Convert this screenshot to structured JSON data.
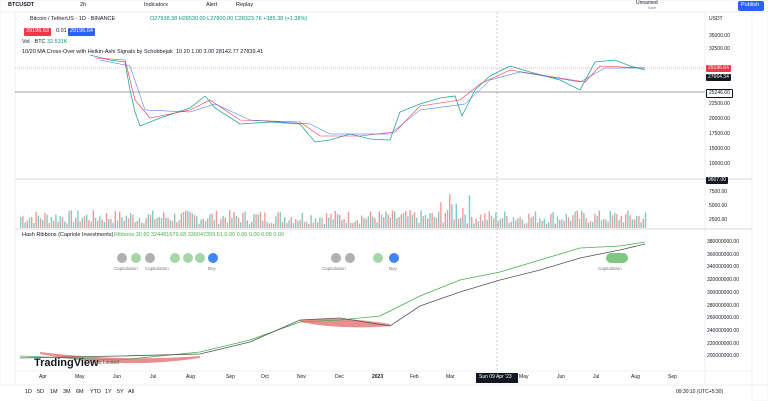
{
  "toolbar": {
    "symbol": "BTCUSDT",
    "interval": "2h",
    "indicators": "Indicators",
    "alert": "Alert",
    "replay": "Replay",
    "layout_name": "Unnamed",
    "save": "Save",
    "publish": "Publish"
  },
  "legend": {
    "title": "Bitcoin / TetherUS · 1D · BINANCE",
    "ohlc": "O27938.38 H28530.00 L27800.00 C28323.76 +385.38 (+1.38%)",
    "sell": "29196.63",
    "spread": "0.01",
    "buy": "29196.64",
    "volume": "Vol · BTC",
    "volume_value": "32.531K",
    "ma": "10/20 MA Cross-Over with Heikin-Ashi Signals by Schobbejak",
    "ma_values": "10 20 1.00 3.00 28142.77 27839.41",
    "hash": "Hash Ribbons (Capriole Investments)",
    "hash_values": "Ribbons 30 60 324481679.68 336047359.51 0.00 0.00 0.00 0.00 0.00"
  },
  "price_axis": {
    "currency": "USDT",
    "labels": [
      "35000.00",
      "32500.00",
      "22500.00",
      "20000.00",
      "17500.00",
      "15000.00",
      "10000.00"
    ],
    "tags": [
      "29196.64",
      "27664.34",
      "25246.60"
    ]
  },
  "volume_axis": {
    "tag": "9607.00",
    "labels": [
      "7500.00",
      "5000.00",
      "2500.00"
    ]
  },
  "hash_axis": {
    "labels": [
      "380000000.00",
      "360000000.00",
      "340000000.00",
      "320000000.00",
      "300000000.00",
      "280000000.00",
      "260000000.00",
      "240000000.00",
      "220000000.00",
      "200000000.00"
    ]
  },
  "ribbon_labels": [
    "Capitulation",
    "Capitulation",
    "Buy",
    "Capitulation",
    "Buy",
    "Capitulation"
  ],
  "watermark": "TradingView",
  "watermark_suffix": "ents Limited",
  "time_axis": {
    "labels": [
      "Apr",
      "May",
      "Jun",
      "Jul",
      "Aug",
      "Sep",
      "Oct",
      "Nov",
      "Dec",
      "2023",
      "Feb",
      "Mar",
      "May",
      "Jun",
      "Jul",
      "Aug",
      "Sep"
    ],
    "cursor": "Sun 09 Apr '23"
  },
  "ranges": [
    "1D",
    "5D",
    "1M",
    "3M",
    "6M",
    "YTD",
    "1Y",
    "5Y",
    "All"
  ],
  "clock": "09:30:10 (UTC+5:30)"
}
